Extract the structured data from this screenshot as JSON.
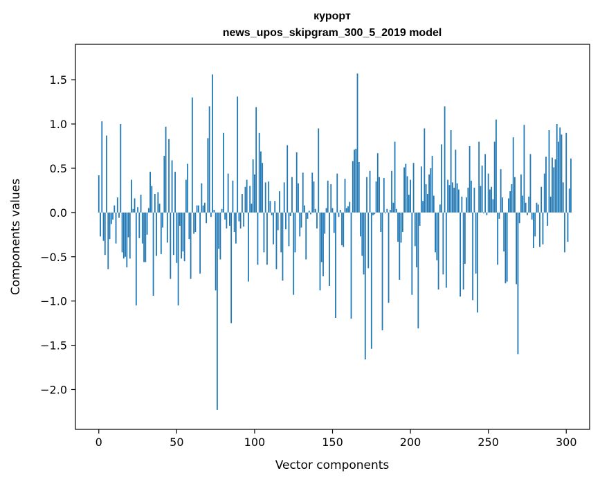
{
  "chart_data": {
    "type": "bar",
    "title": "курорт",
    "subtitle": "news_upos_skipgram_300_5_2019 model",
    "xlabel": "Vector components",
    "ylabel": "Components values",
    "xlim": [
      -15,
      315
    ],
    "ylim": [
      -2.45,
      1.9
    ],
    "xticks": [
      0,
      50,
      100,
      150,
      200,
      250,
      300
    ],
    "yticks": [
      -2.0,
      -1.5,
      -1.0,
      -0.5,
      0.0,
      0.5,
      1.0,
      1.5
    ],
    "xtick_labels": [
      "0",
      "50",
      "100",
      "150",
      "200",
      "250",
      "300"
    ],
    "ytick_labels": [
      "−2.0",
      "−1.5",
      "−1.0",
      "−0.5",
      "0.0",
      "0.5",
      "1.0",
      "1.5"
    ],
    "bar_color": "#1f77b4",
    "grid": false,
    "values": [
      0.42,
      -0.27,
      1.03,
      -0.32,
      -0.48,
      0.87,
      -0.64,
      -0.3,
      -0.13,
      -0.08,
      0.08,
      -0.35,
      0.17,
      -0.06,
      1.0,
      -0.45,
      -0.52,
      -0.5,
      -0.62,
      -0.28,
      -0.52,
      0.37,
      0.04,
      0.16,
      -1.05,
      0.06,
      -0.29,
      0.2,
      -0.35,
      -0.56,
      -0.56,
      -0.25,
      0.05,
      0.46,
      0.3,
      -0.94,
      0.21,
      -0.49,
      0.23,
      0.1,
      -0.47,
      -0.17,
      0.64,
      0.97,
      -0.34,
      0.83,
      -0.75,
      0.59,
      -0.48,
      0.46,
      -0.57,
      -1.05,
      -0.15,
      -0.52,
      -0.44,
      -0.55,
      0.37,
      0.55,
      -0.3,
      -0.75,
      1.3,
      -0.24,
      -0.22,
      0.08,
      0.08,
      -0.69,
      0.33,
      0.08,
      0.11,
      -0.12,
      0.84,
      1.2,
      -0.05,
      1.56,
      0.03,
      -0.88,
      -2.23,
      -0.41,
      -0.53,
      0.04,
      0.9,
      -0.08,
      -0.18,
      0.44,
      -0.15,
      -1.25,
      0.36,
      -0.22,
      -0.35,
      1.31,
      -0.1,
      -0.18,
      0.21,
      -0.16,
      0.29,
      0.37,
      -0.78,
      0.3,
      0.1,
      0.6,
      0.43,
      1.19,
      -0.59,
      0.9,
      0.69,
      0.56,
      -0.45,
      0.34,
      -0.59,
      0.35,
      0.13,
      -0.03,
      -0.36,
      0.13,
      -0.64,
      -0.2,
      0.24,
      -0.45,
      -0.77,
      0.34,
      -0.19,
      0.76,
      -0.38,
      -0.04,
      0.4,
      -0.93,
      -0.45,
      0.68,
      0.33,
      -0.27,
      -0.17,
      0.45,
      0.08,
      -0.53,
      -0.07,
      0.02,
      -0.02,
      0.45,
      0.35,
      0.04,
      -0.18,
      0.95,
      -0.88,
      -0.56,
      -0.72,
      -0.24,
      0.05,
      0.36,
      -0.83,
      0.32,
      0.05,
      -0.23,
      -1.19,
      0.44,
      -0.05,
      0.03,
      -0.37,
      -0.39,
      0.38,
      0.05,
      0.07,
      0.12,
      -1.2,
      0.58,
      0.71,
      0.72,
      1.57,
      0.57,
      -0.27,
      -0.49,
      -0.7,
      -1.66,
      0.4,
      -0.63,
      0.47,
      -1.54,
      -0.03,
      -0.02,
      0.35,
      0.67,
      0.4,
      -0.22,
      -1.33,
      0.39,
      -0.01,
      0.04,
      -1.02,
      0.03,
      0.47,
      0.11,
      0.8,
      0.04,
      -0.33,
      -0.76,
      -0.34,
      -0.22,
      0.51,
      0.55,
      0.41,
      0.2,
      0.37,
      -0.93,
      0.56,
      -0.38,
      -0.62,
      -1.31,
      -0.15,
      0.52,
      0.13,
      0.95,
      0.32,
      0.21,
      0.43,
      0.5,
      0.64,
      0.19,
      -0.45,
      -0.54,
      -0.87,
      0.09,
      0.77,
      -0.7,
      1.2,
      -0.85,
      0.37,
      0.31,
      0.93,
      0.34,
      0.28,
      0.71,
      0.33,
      0.26,
      -0.95,
      0.18,
      -0.87,
      -0.58,
      0.17,
      0.28,
      0.75,
      0.36,
      -0.99,
      0.28,
      -0.69,
      -1.13,
      0.8,
      0.3,
      0.53,
      -0.01,
      0.66,
      -0.03,
      0.44,
      0.26,
      0.29,
      0.15,
      0.8,
      1.05,
      -0.59,
      -0.07,
      0.49,
      0.17,
      -0.44,
      -0.8,
      -0.78,
      0.16,
      0.24,
      0.32,
      0.85,
      0.4,
      -0.81,
      -1.6,
      -0.12,
      0.43,
      0.19,
      0.99,
      0.11,
      -0.03,
      0.18,
      0.66,
      -0.08,
      -0.4,
      -0.27,
      0.11,
      0.09,
      -0.39,
      0.29,
      -0.36,
      0.44,
      0.63,
      -0.15,
      0.93,
      0.18,
      0.62,
      0.51,
      0.6,
      1.0,
      0.8,
      0.96,
      0.88,
      0.34,
      -0.45,
      0.9,
      -0.33,
      0.27,
      0.61
    ]
  }
}
